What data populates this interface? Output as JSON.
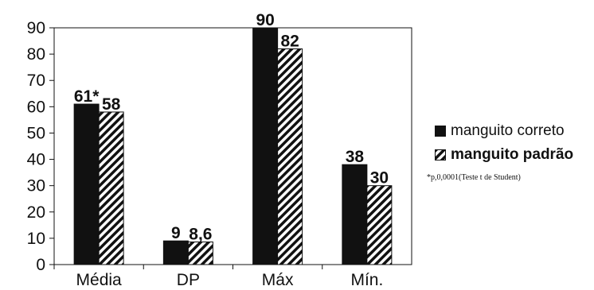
{
  "chart_data": {
    "type": "bar",
    "categories": [
      "Média",
      "DP",
      "Máx",
      "Mín."
    ],
    "ylim": [
      0,
      90
    ],
    "yticks": [
      "0",
      "10",
      "20",
      "30",
      "40",
      "50",
      "60",
      "70",
      "80",
      "90"
    ],
    "series": [
      {
        "name": "manguito correto",
        "values": [
          61,
          9,
          90,
          38
        ],
        "labels": [
          "61*",
          "9",
          "90",
          "38"
        ],
        "fill": "solid",
        "color": "#111111"
      },
      {
        "name": "manguito padrão",
        "values": [
          58,
          8.6,
          82,
          30
        ],
        "labels": [
          "58",
          "8,6",
          "82",
          "30"
        ],
        "fill": "hatched",
        "color": "#111111"
      }
    ],
    "legend_position": "right",
    "grid": false
  },
  "legend": {
    "items": [
      "manguito correto",
      "manguito padrão"
    ],
    "footnote": "*p,0,0001(Teste t de Student)"
  }
}
